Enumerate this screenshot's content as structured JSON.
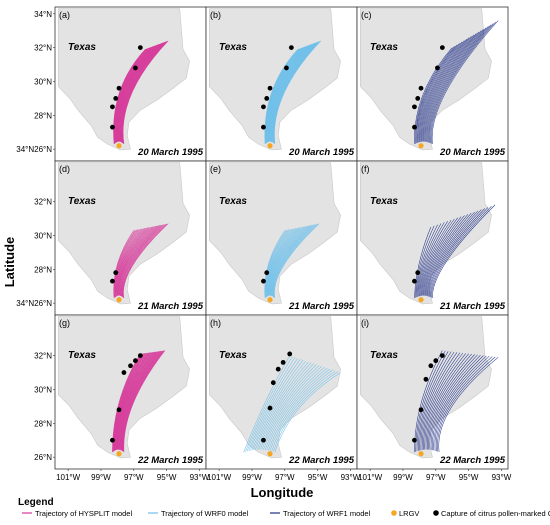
{
  "chart_data": {
    "type": "line",
    "xlabel": "Longitude",
    "ylabel": "Latitude",
    "x_ticks": [
      "101°W",
      "99°W",
      "97°W",
      "95°W",
      "93°W"
    ],
    "y_ticks": [
      "26°N",
      "28°N",
      "30°N",
      "32°N",
      "34°N"
    ],
    "y_tick_joined_top": "34°N26°N",
    "region_label": "Texas",
    "legend": {
      "title": "Legend",
      "entries": [
        {
          "label": "Trajectory of HYSPLIT model",
          "color": "#d63a9a",
          "kind": "line"
        },
        {
          "label": "Trajectory of WRF0 model",
          "color": "#6fc0ea",
          "kind": "line"
        },
        {
          "label": "Trajectory of WRF1 model",
          "color": "#1f2f86",
          "kind": "line"
        },
        {
          "label": "LRGV",
          "color": "#f5a623",
          "kind": "point"
        },
        {
          "label": "Capture of citrus pollen-marked CEWs",
          "color": "#000000",
          "kind": "point"
        }
      ]
    },
    "lrgv": {
      "lon": -97.9,
      "lat": 26.2
    },
    "panels": [
      {
        "id": "(a)",
        "model": "HYSPLIT",
        "color": "#d63a9a",
        "date": "20 March 1995",
        "tracks": {
          "n": 40,
          "start_lon_range": [
            -98.2,
            -97.6
          ],
          "mid": [
            -98.5,
            29.6
          ],
          "end": [
            [
              -96.3,
              31.9
            ],
            [
              -94.9,
              32.4
            ]
          ]
        },
        "captures": [
          [
            -96.6,
            32.0
          ],
          [
            -96.9,
            30.8
          ],
          [
            -97.9,
            29.6
          ],
          [
            -98.1,
            29.0
          ],
          [
            -98.3,
            28.5
          ],
          [
            -98.3,
            27.3
          ]
        ]
      },
      {
        "id": "(b)",
        "model": "WRF0",
        "color": "#6fc0ea",
        "date": "20 March 1995",
        "tracks": {
          "n": 40,
          "start_lon_range": [
            -98.2,
            -97.6
          ],
          "mid": [
            -98.4,
            29.6
          ],
          "end": [
            [
              -96.2,
              31.9
            ],
            [
              -94.8,
              32.4
            ]
          ]
        },
        "captures": [
          [
            -96.6,
            32.0
          ],
          [
            -96.9,
            30.8
          ],
          [
            -97.9,
            29.6
          ],
          [
            -98.1,
            29.0
          ],
          [
            -98.3,
            28.5
          ],
          [
            -98.3,
            27.3
          ]
        ]
      },
      {
        "id": "(c)",
        "model": "WRF1",
        "color": "#1f2f86",
        "date": "20 March 1995",
        "tracks": {
          "n": 20,
          "start_lon_range": [
            -98.3,
            -97.2
          ],
          "mid": [
            -98.4,
            29.3
          ],
          "end": [
            [
              -96.0,
              32.0
            ],
            [
              -93.2,
              33.6
            ]
          ]
        },
        "captures": [
          [
            -96.6,
            32.0
          ],
          [
            -96.9,
            30.8
          ],
          [
            -97.9,
            29.6
          ],
          [
            -98.1,
            29.0
          ],
          [
            -98.3,
            28.5
          ],
          [
            -98.3,
            27.3
          ]
        ]
      },
      {
        "id": "(d)",
        "model": "HYSPLIT",
        "color": "#d63a9a",
        "date": "21 March 1995",
        "tracks": {
          "n": 26,
          "start_lon_range": [
            -98.2,
            -97.6
          ],
          "mid": [
            -98.4,
            28.3
          ],
          "end": [
            [
              -97.0,
              30.3
            ],
            [
              -94.9,
              30.7
            ]
          ]
        },
        "captures": [
          [
            -98.1,
            27.8
          ],
          [
            -98.3,
            27.3
          ]
        ]
      },
      {
        "id": "(e)",
        "model": "WRF0",
        "color": "#6fc0ea",
        "date": "21 March 1995",
        "tracks": {
          "n": 26,
          "start_lon_range": [
            -98.2,
            -97.6
          ],
          "mid": [
            -98.4,
            28.3
          ],
          "end": [
            [
              -97.0,
              30.3
            ],
            [
              -94.9,
              30.7
            ]
          ]
        },
        "captures": [
          [
            -98.1,
            27.8
          ],
          [
            -98.3,
            27.3
          ]
        ]
      },
      {
        "id": "(f)",
        "model": "WRF1",
        "color": "#1f2f86",
        "date": "21 March 1995",
        "tracks": {
          "n": 20,
          "start_lon_range": [
            -98.3,
            -97.2
          ],
          "mid": [
            -98.2,
            28.4
          ],
          "end": [
            [
              -97.3,
              30.5
            ],
            [
              -93.4,
              31.8
            ]
          ]
        },
        "captures": [
          [
            -98.1,
            27.8
          ],
          [
            -98.3,
            27.3
          ]
        ]
      },
      {
        "id": "(g)",
        "model": "HYSPLIT",
        "color": "#d63a9a",
        "date": "22 March 1995",
        "tracks": {
          "n": 40,
          "start_lon_range": [
            -98.3,
            -97.6
          ],
          "mid": [
            -98.3,
            29.4
          ],
          "end": [
            [
              -96.6,
              32.1
            ],
            [
              -95.1,
              32.3
            ]
          ]
        },
        "captures": [
          [
            -96.6,
            32.0
          ],
          [
            -96.9,
            31.7
          ],
          [
            -97.2,
            31.4
          ],
          [
            -97.6,
            31.0
          ],
          [
            -97.9,
            28.8
          ],
          [
            -98.3,
            27.0
          ]
        ]
      },
      {
        "id": "(h)",
        "model": "WRF0",
        "color": "#6fc0ea",
        "date": "22 March 1995",
        "tracks": {
          "n": 20,
          "start_lon_range": [
            -99.5,
            -97.6
          ],
          "mid": [
            -98.2,
            29.5
          ],
          "end": [
            [
              -96.7,
              32.0
            ],
            [
              -93.6,
              31.0
            ]
          ]
        },
        "captures": [
          [
            -96.7,
            32.1
          ],
          [
            -97.1,
            31.6
          ],
          [
            -97.4,
            31.2
          ],
          [
            -97.7,
            30.4
          ],
          [
            -97.9,
            28.9
          ],
          [
            -98.3,
            27.0
          ]
        ]
      },
      {
        "id": "(i)",
        "model": "WRF1",
        "color": "#1f2f86",
        "date": "22 March 1995",
        "tracks": {
          "n": 20,
          "start_lon_range": [
            -98.3,
            -96.8
          ],
          "mid": [
            -98.3,
            29.2
          ],
          "end": [
            [
              -96.6,
              32.3
            ],
            [
              -93.2,
              31.9
            ]
          ]
        },
        "captures": [
          [
            -96.6,
            32.0
          ],
          [
            -97.0,
            31.7
          ],
          [
            -97.3,
            31.4
          ],
          [
            -97.6,
            30.6
          ],
          [
            -97.9,
            28.8
          ],
          [
            -98.3,
            27.0
          ]
        ]
      }
    ]
  }
}
